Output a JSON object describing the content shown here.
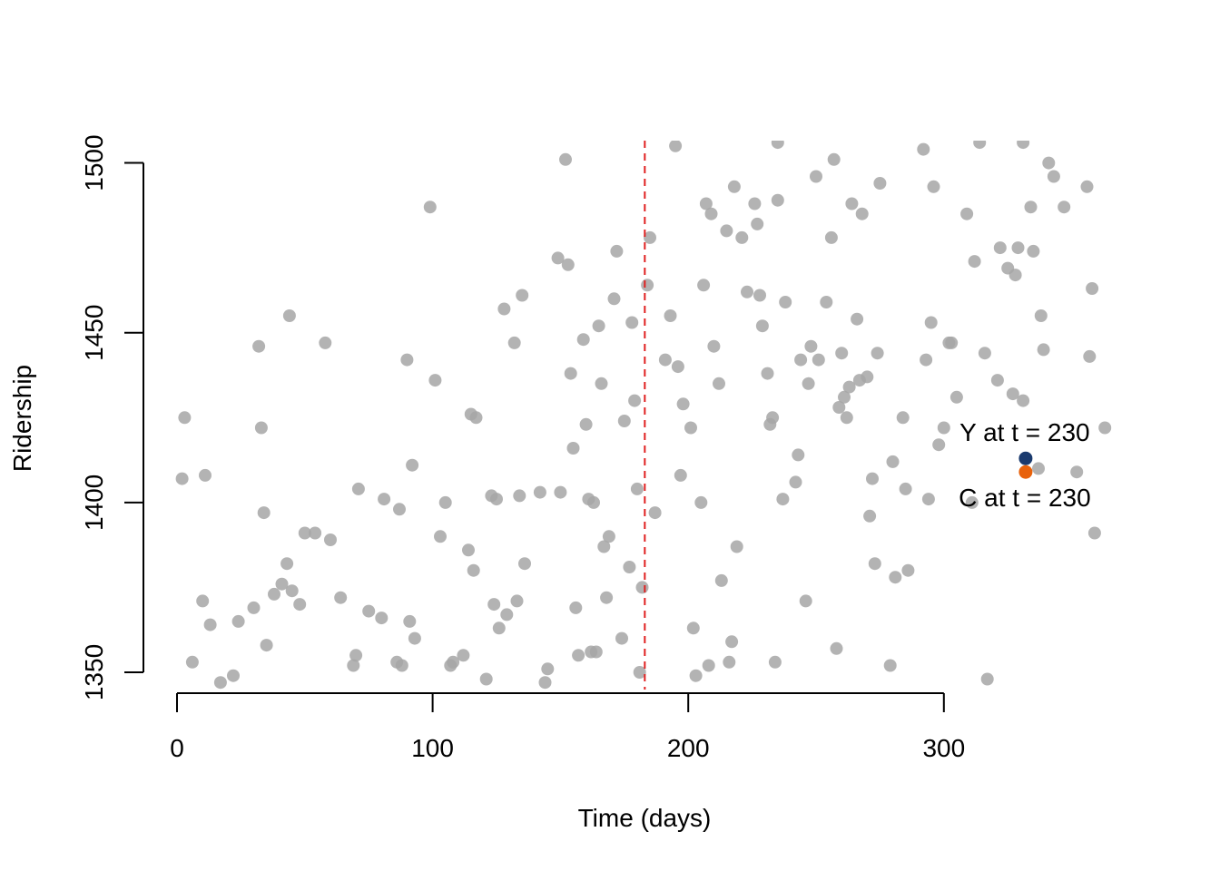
{
  "chart_data": {
    "type": "scatter",
    "title": "",
    "xlabel": "Time (days)",
    "ylabel": "Ridership",
    "xlim": [
      -4,
      366
    ],
    "ylim": [
      1344,
      1506
    ],
    "x_ticks": [
      0,
      100,
      200,
      300
    ],
    "x_tick_labels": [
      "0",
      "100",
      "200",
      "300"
    ],
    "y_ticks": [
      1350,
      1400,
      1450,
      1500
    ],
    "y_tick_labels": [
      "1350",
      "1400",
      "1450",
      "1500"
    ],
    "grid": false,
    "legend": "none",
    "point_color": "#a6a6a6",
    "reference_line": {
      "x": 183,
      "color": "#e02020",
      "style": "dashed"
    },
    "points": [
      [
        2,
        1407
      ],
      [
        3,
        1425
      ],
      [
        6,
        1353
      ],
      [
        10,
        1371
      ],
      [
        11,
        1408
      ],
      [
        13,
        1364
      ],
      [
        17,
        1347
      ],
      [
        22,
        1349
      ],
      [
        24,
        1365
      ],
      [
        30,
        1369
      ],
      [
        32,
        1446
      ],
      [
        33,
        1422
      ],
      [
        34,
        1397
      ],
      [
        35,
        1358
      ],
      [
        38,
        1373
      ],
      [
        41,
        1376
      ],
      [
        43,
        1382
      ],
      [
        44,
        1455
      ],
      [
        45,
        1374
      ],
      [
        48,
        1370
      ],
      [
        50,
        1391
      ],
      [
        54,
        1391
      ],
      [
        58,
        1447
      ],
      [
        60,
        1389
      ],
      [
        64,
        1372
      ],
      [
        69,
        1352
      ],
      [
        70,
        1355
      ],
      [
        71,
        1404
      ],
      [
        75,
        1368
      ],
      [
        80,
        1366
      ],
      [
        81,
        1401
      ],
      [
        86,
        1353
      ],
      [
        87,
        1398
      ],
      [
        88,
        1352
      ],
      [
        90,
        1442
      ],
      [
        91,
        1365
      ],
      [
        92,
        1411
      ],
      [
        93,
        1360
      ],
      [
        99,
        1487
      ],
      [
        101,
        1436
      ],
      [
        103,
        1390
      ],
      [
        105,
        1400
      ],
      [
        107,
        1352
      ],
      [
        108,
        1353
      ],
      [
        112,
        1355
      ],
      [
        114,
        1386
      ],
      [
        115,
        1426
      ],
      [
        116,
        1380
      ],
      [
        117,
        1425
      ],
      [
        121,
        1348
      ],
      [
        123,
        1402
      ],
      [
        124,
        1370
      ],
      [
        125,
        1401
      ],
      [
        126,
        1363
      ],
      [
        128,
        1457
      ],
      [
        129,
        1367
      ],
      [
        132,
        1447
      ],
      [
        133,
        1371
      ],
      [
        134,
        1402
      ],
      [
        135,
        1461
      ],
      [
        136,
        1382
      ],
      [
        142,
        1403
      ],
      [
        144,
        1347
      ],
      [
        145,
        1351
      ],
      [
        149,
        1472
      ],
      [
        150,
        1403
      ],
      [
        152,
        1501
      ],
      [
        153,
        1470
      ],
      [
        154,
        1438
      ],
      [
        155,
        1416
      ],
      [
        156,
        1369
      ],
      [
        157,
        1355
      ],
      [
        159,
        1448
      ],
      [
        160,
        1423
      ],
      [
        161,
        1401
      ],
      [
        162,
        1356
      ],
      [
        163,
        1400
      ],
      [
        164,
        1356
      ],
      [
        165,
        1452
      ],
      [
        166,
        1435
      ],
      [
        167,
        1387
      ],
      [
        168,
        1372
      ],
      [
        169,
        1390
      ],
      [
        171,
        1460
      ],
      [
        172,
        1474
      ],
      [
        174,
        1360
      ],
      [
        175,
        1424
      ],
      [
        177,
        1381
      ],
      [
        178,
        1453
      ],
      [
        179,
        1430
      ],
      [
        180,
        1404
      ],
      [
        181,
        1350
      ],
      [
        182,
        1375
      ],
      [
        184,
        1464
      ],
      [
        185,
        1478
      ],
      [
        187,
        1397
      ],
      [
        191,
        1442
      ],
      [
        193,
        1455
      ],
      [
        195,
        1505
      ],
      [
        196,
        1440
      ],
      [
        197,
        1408
      ],
      [
        198,
        1429
      ],
      [
        201,
        1422
      ],
      [
        202,
        1363
      ],
      [
        203,
        1349
      ],
      [
        205,
        1400
      ],
      [
        206,
        1464
      ],
      [
        207,
        1488
      ],
      [
        208,
        1352
      ],
      [
        209,
        1485
      ],
      [
        210,
        1446
      ],
      [
        212,
        1435
      ],
      [
        213,
        1377
      ],
      [
        215,
        1480
      ],
      [
        216,
        1353
      ],
      [
        217,
        1359
      ],
      [
        218,
        1493
      ],
      [
        219,
        1387
      ],
      [
        221,
        1478
      ],
      [
        223,
        1462
      ],
      [
        226,
        1488
      ],
      [
        227,
        1482
      ],
      [
        228,
        1461
      ],
      [
        229,
        1452
      ],
      [
        231,
        1438
      ],
      [
        232,
        1423
      ],
      [
        233,
        1425
      ],
      [
        234,
        1353
      ],
      [
        235,
        1489
      ],
      [
        237,
        1401
      ],
      [
        238,
        1459
      ],
      [
        242,
        1406
      ],
      [
        243,
        1414
      ],
      [
        244,
        1442
      ],
      [
        246,
        1371
      ],
      [
        247,
        1435
      ],
      [
        248,
        1446
      ],
      [
        250,
        1496
      ],
      [
        251,
        1442
      ],
      [
        254,
        1459
      ],
      [
        256,
        1478
      ],
      [
        257,
        1501
      ],
      [
        258,
        1357
      ],
      [
        259,
        1428
      ],
      [
        260,
        1444
      ],
      [
        261,
        1431
      ],
      [
        262,
        1425
      ],
      [
        263,
        1434
      ],
      [
        264,
        1488
      ],
      [
        266,
        1454
      ],
      [
        267,
        1436
      ],
      [
        268,
        1485
      ],
      [
        270,
        1437
      ],
      [
        271,
        1396
      ],
      [
        272,
        1407
      ],
      [
        273,
        1382
      ],
      [
        274,
        1444
      ],
      [
        275,
        1494
      ],
      [
        279,
        1352
      ],
      [
        280,
        1412
      ],
      [
        281,
        1378
      ],
      [
        284,
        1425
      ],
      [
        285,
        1404
      ],
      [
        286,
        1380
      ],
      [
        292,
        1504
      ],
      [
        293,
        1442
      ],
      [
        294,
        1401
      ],
      [
        295,
        1453
      ],
      [
        296,
        1493
      ],
      [
        298,
        1417
      ],
      [
        300,
        1422
      ],
      [
        302,
        1447
      ],
      [
        303,
        1447
      ],
      [
        305,
        1431
      ],
      [
        309,
        1485
      ],
      [
        311,
        1400
      ],
      [
        312,
        1471
      ],
      [
        314,
        1506
      ],
      [
        316,
        1444
      ],
      [
        317,
        1348
      ],
      [
        321,
        1436
      ],
      [
        322,
        1475
      ],
      [
        325,
        1469
      ],
      [
        327,
        1432
      ],
      [
        328,
        1467
      ],
      [
        329,
        1475
      ],
      [
        331,
        1430
      ],
      [
        334,
        1487
      ],
      [
        335,
        1474
      ],
      [
        337,
        1410
      ],
      [
        338,
        1455
      ],
      [
        339,
        1445
      ],
      [
        341,
        1500
      ],
      [
        343,
        1496
      ],
      [
        347,
        1487
      ],
      [
        352,
        1409
      ],
      [
        356,
        1493
      ],
      [
        357,
        1443
      ],
      [
        358,
        1463
      ],
      [
        359,
        1391
      ],
      [
        363,
        1422
      ],
      [
        235,
        1506
      ],
      [
        331,
        1506
      ]
    ],
    "highlight_points": [
      {
        "x": 332,
        "y": 1413,
        "color": "#1a3a6e"
      },
      {
        "x": 332,
        "y": 1409,
        "color": "#e8620c"
      }
    ],
    "annotations": [
      {
        "text": "Y at t = 230",
        "x": 332,
        "y": 1413,
        "position": "above"
      },
      {
        "text": "C at t = 230",
        "x": 332,
        "y": 1409,
        "position": "below"
      }
    ]
  }
}
